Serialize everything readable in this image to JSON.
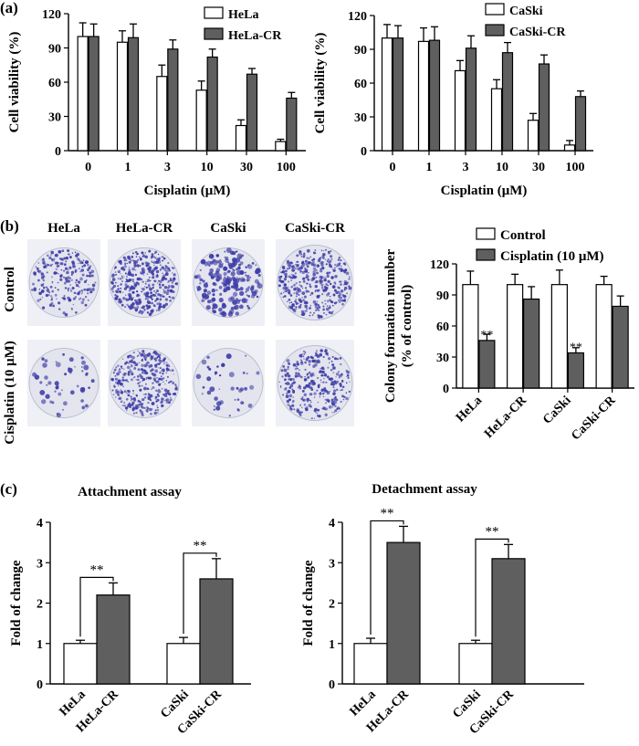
{
  "colors": {
    "open_bar": "#ffffff",
    "filled_bar": "#5f5f5f",
    "axis": "#000000",
    "colony": "#3f3fa8",
    "plate_bg": "#eef0f6"
  },
  "panel_labels": {
    "a": "(a)",
    "b": "(b)",
    "c": "(c)"
  },
  "photo_panel": {
    "columns": [
      "HeLa",
      "HeLa-CR",
      "CaSki",
      "CaSki-CR"
    ],
    "rows": [
      "Control",
      "Cisplatin (10 μM)"
    ],
    "density": [
      [
        0.55,
        0.95,
        0.5,
        0.95
      ],
      [
        0.12,
        0.85,
        0.1,
        0.75
      ]
    ]
  },
  "chart_data": [
    {
      "id": "a1",
      "type": "bar",
      "title": "",
      "xlabel": "Cisplatin (μM)",
      "ylabel": "Cell viability (%)",
      "ylim": [
        0,
        120
      ],
      "yticks": [
        0,
        30,
        60,
        90,
        120
      ],
      "categories": [
        "0",
        "1",
        "3",
        "10",
        "30",
        "100"
      ],
      "legend": "top-right",
      "series": [
        {
          "name": "HeLa",
          "style": "open",
          "values": [
            100,
            95,
            65,
            53,
            22,
            8
          ],
          "errors": [
            12,
            10,
            10,
            8,
            5,
            2
          ],
          "sig": [
            "",
            "",
            "",
            "",
            "",
            ""
          ]
        },
        {
          "name": "HeLa-CR",
          "style": "filled",
          "values": [
            100,
            99,
            89,
            82,
            67,
            46
          ],
          "errors": [
            11,
            12,
            8,
            7,
            5,
            5
          ],
          "sig": [
            "",
            "",
            "",
            "",
            "",
            ""
          ]
        }
      ]
    },
    {
      "id": "a2",
      "type": "bar",
      "title": "",
      "xlabel": "Cisplatin (μM)",
      "ylabel": "Cell viability (%)",
      "ylim": [
        0,
        120
      ],
      "yticks": [
        0,
        30,
        60,
        90,
        120
      ],
      "categories": [
        "0",
        "1",
        "3",
        "10",
        "30",
        "100"
      ],
      "legend": "top-right",
      "series": [
        {
          "name": "CaSki",
          "style": "open",
          "values": [
            100,
            97,
            71,
            55,
            27,
            5
          ],
          "errors": [
            12,
            12,
            9,
            8,
            6,
            4
          ],
          "sig": [
            "",
            "",
            "",
            "",
            "",
            ""
          ]
        },
        {
          "name": "CaSki-CR",
          "style": "filled",
          "values": [
            100,
            98,
            91,
            87,
            77,
            48
          ],
          "errors": [
            11,
            12,
            11,
            9,
            8,
            5
          ],
          "sig": [
            "",
            "",
            "",
            "",
            "",
            ""
          ]
        }
      ]
    },
    {
      "id": "b",
      "type": "bar",
      "title": "",
      "xlabel": "",
      "ylabel": "Colony formation number",
      "ylabel2": "(% of control)",
      "ylim": [
        0,
        120
      ],
      "yticks": [
        0,
        30,
        60,
        90,
        120
      ],
      "categories": [
        "HeLa",
        "HeLa-CR",
        "CaSki",
        "CaSki-CR"
      ],
      "legend": "top",
      "series": [
        {
          "name": "Control",
          "style": "open",
          "values": [
            100,
            100,
            100,
            100
          ],
          "errors": [
            13,
            10,
            14,
            8
          ],
          "sig": [
            "",
            "",
            "",
            ""
          ]
        },
        {
          "name": "Cisplatin (10 μM)",
          "style": "filled",
          "values": [
            46,
            86,
            34,
            79
          ],
          "errors": [
            6,
            12,
            5,
            10
          ],
          "sig": [
            "**",
            "",
            "**",
            ""
          ]
        }
      ]
    },
    {
      "id": "c1",
      "type": "bar",
      "title": "Attachment assay",
      "xlabel": "",
      "ylabel": "Fold of change",
      "ylim": [
        0,
        4
      ],
      "yticks": [
        0,
        1,
        2,
        3,
        4
      ],
      "categories": [
        "HeLa",
        "HeLa-CR",
        "CaSki",
        "CaSki-CR"
      ],
      "styles": [
        "open",
        "filled",
        "open",
        "filled"
      ],
      "values": [
        1.0,
        2.2,
        1.0,
        2.6
      ],
      "errors": [
        0.08,
        0.3,
        0.15,
        0.5
      ],
      "significance": [
        {
          "from": 0,
          "to": 1,
          "label": "**"
        },
        {
          "from": 2,
          "to": 3,
          "label": "**"
        }
      ]
    },
    {
      "id": "c2",
      "type": "bar",
      "title": "Detachment assay",
      "xlabel": "",
      "ylabel": "Fold of change",
      "ylim": [
        0,
        4
      ],
      "yticks": [
        0,
        1,
        2,
        3,
        4
      ],
      "categories": [
        "HeLa",
        "HeLa-CR",
        "CaSki",
        "CaSki-CR"
      ],
      "styles": [
        "open",
        "filled",
        "open",
        "filled"
      ],
      "values": [
        1.0,
        3.5,
        1.0,
        3.1
      ],
      "errors": [
        0.13,
        0.4,
        0.08,
        0.35
      ],
      "significance": [
        {
          "from": 0,
          "to": 1,
          "label": "**"
        },
        {
          "from": 2,
          "to": 3,
          "label": "**"
        }
      ]
    }
  ]
}
